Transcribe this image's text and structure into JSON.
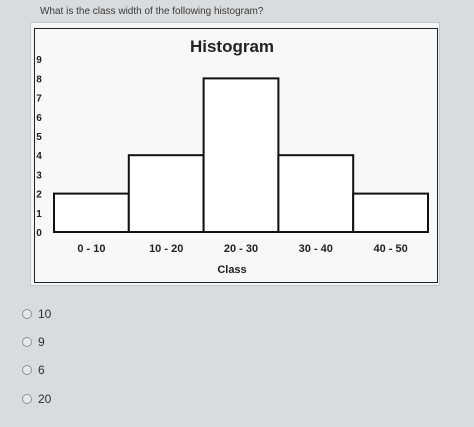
{
  "question": {
    "text": "What is the class width of the following histogram?"
  },
  "chart_data": {
    "type": "bar",
    "title": "Histogram",
    "xlabel": "Class",
    "ylabel": "",
    "categories": [
      "0 - 10",
      "10 - 20",
      "20 - 30",
      "30 - 40",
      "40 - 50"
    ],
    "values": [
      2,
      4,
      8,
      4,
      2
    ],
    "ylim": [
      0,
      9
    ],
    "yticks": [
      "0",
      "1",
      "2",
      "3",
      "4",
      "5",
      "6",
      "7",
      "8",
      "9"
    ],
    "grid": false,
    "bar_color": "#ffffff",
    "edge_color": "#111111"
  },
  "options": [
    {
      "label": "10"
    },
    {
      "label": "9"
    },
    {
      "label": "6"
    },
    {
      "label": "20"
    }
  ]
}
